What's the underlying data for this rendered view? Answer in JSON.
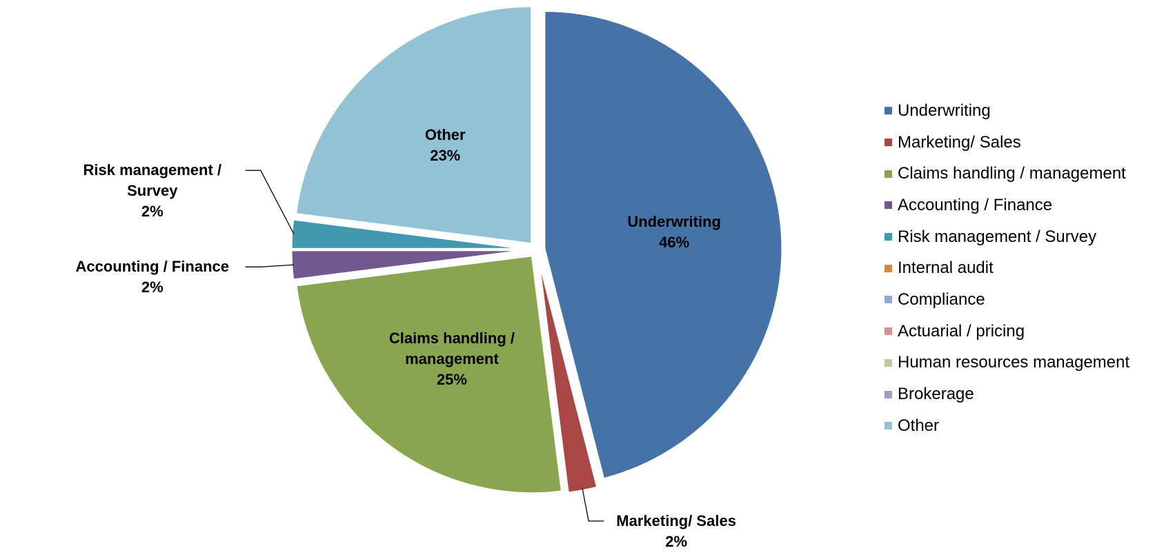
{
  "chart_data": {
    "type": "pie",
    "categories": [
      "Underwriting",
      "Marketing/ Sales",
      "Claims handling / management",
      "Accounting / Finance",
      "Risk management / Survey",
      "Internal audit",
      "Compliance",
      "Actuarial / pricing",
      "Human resources management",
      "Brokerage",
      "Other"
    ],
    "values": [
      46,
      2,
      25,
      2,
      2,
      0,
      0,
      0,
      0,
      0,
      23
    ],
    "value_labels": [
      "46%",
      "2%",
      "25%",
      "2%",
      "2%",
      null,
      null,
      null,
      null,
      null,
      "23%"
    ],
    "colors": [
      "#4572a7",
      "#aa4643",
      "#89a54e",
      "#71588f",
      "#4198af",
      "#db843d",
      "#93a9cf",
      "#d19392",
      "#b9cd96",
      "#a99bbd",
      "#92c3d4"
    ],
    "legend": "right"
  }
}
